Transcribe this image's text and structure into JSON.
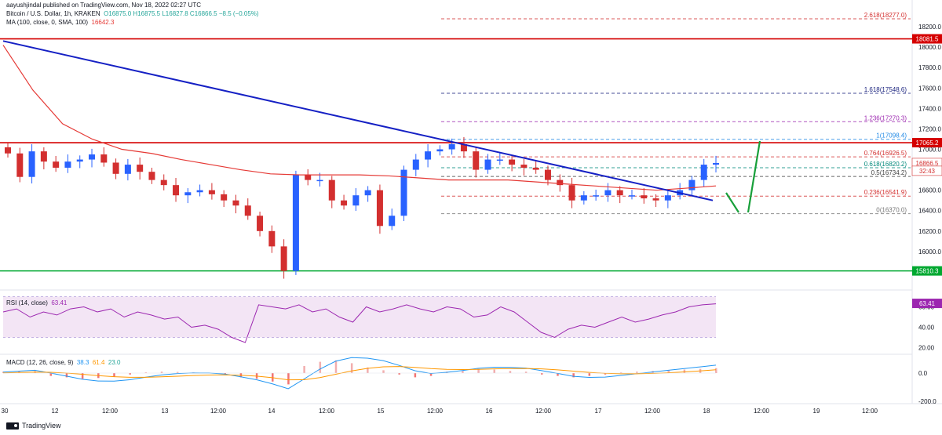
{
  "header": {
    "publisher": "aayushjindal published on TradingView.com, Nov 18, 2022 02:27 UTC",
    "symbol": "Bitcoin / U.S. Dollar, 1h, KRAKEN",
    "ohlc": "O16875.0  H16875.5  L16827.8  C16866.5  −8.5 (−0.05%)",
    "ma_label": "MA (100, close, 0, SMA, 100)",
    "ma_value": "16642.3",
    "rsi_label": "RSI (14, close)",
    "rsi_value": "63.41",
    "macd_label": "MACD (12, 26, close, 9)",
    "macd_v1": "38.3",
    "macd_v2": "61.4",
    "macd_v3": "23.0"
  },
  "brand": "TradingView",
  "colors": {
    "up": "#26a69a",
    "down": "#ef5350",
    "body_up": "#2962ff",
    "body_down": "#d32f2f",
    "ma": "#e53935",
    "trend": "#1520c4",
    "resistance": "#d50000",
    "support": "#00a830",
    "rsi": "#9c27b0",
    "rsi_bg": "#f3e5f5",
    "macd": "#2196f3",
    "signal": "#ff9800",
    "arrow": "#18a03a",
    "fib": "#9e9e9e"
  },
  "chart_data": {
    "type": "line",
    "y_ticks": [
      "18200.0",
      "18000.0",
      "17800.0",
      "17600.0",
      "17400.0",
      "17200.0",
      "17000.0",
      "16800.0",
      "16600.0",
      "16400.0",
      "16200.0",
      "16000.0"
    ],
    "x_ticks": [
      "30",
      "12",
      "12:00",
      "13",
      "12:00",
      "14",
      "12:00",
      "15",
      "12:00",
      "16",
      "12:00",
      "17",
      "12:00",
      "18",
      "12:00",
      "19",
      "12:00"
    ],
    "price_close_path": [
      16960,
      16730,
      16980,
      16880,
      16820,
      16880,
      16900,
      16950,
      16870,
      16760,
      16850,
      16780,
      16700,
      16650,
      16550,
      16580,
      16600,
      16560,
      16500,
      16450,
      16350,
      16200,
      16050,
      15810,
      16750,
      16700,
      16700,
      16500,
      16450,
      16550,
      16600,
      16250,
      16350,
      16800,
      16900,
      16980,
      17000,
      17050,
      16980,
      16800,
      16900,
      16900,
      16850,
      16820,
      16800,
      16700,
      16650,
      16500,
      16550,
      16550,
      16600,
      16550,
      16550,
      16520,
      16500,
      16550,
      16600,
      16700,
      16850,
      16866
    ],
    "ma100_path": [
      18020,
      17580,
      17250,
      17100,
      17000,
      16960,
      16900,
      16850,
      16800,
      16760,
      16750,
      16750,
      16750,
      16740,
      16720,
      16700,
      16700,
      16700,
      16680,
      16660,
      16640,
      16620,
      16600,
      16620,
      16642
    ],
    "levels": [
      {
        "label": "18081.5",
        "value": 18081.5,
        "color": "#d50000"
      },
      {
        "label": "17065.2",
        "value": 17065.2,
        "color": "#d50000"
      },
      {
        "label": "15810.3",
        "value": 15810.3,
        "color": "#00a830"
      }
    ],
    "fib_levels": [
      {
        "label": "2.618(18277.0)",
        "value": 18277.0,
        "color": "#d32f2f"
      },
      {
        "label": "1.618(17548.6)",
        "value": 17548.6,
        "color": "#1a237e"
      },
      {
        "label": "1.236(17270.3)",
        "value": 17270.3,
        "color": "#9c27b0"
      },
      {
        "label": "1(17098.4)",
        "value": 17098.4,
        "color": "#1e88e5"
      },
      {
        "label": "0.764(16926.5)",
        "value": 16926.5,
        "color": "#d32f2f"
      },
      {
        "label": "0.618(16820.2)",
        "value": 16820.2,
        "color": "#00897b"
      },
      {
        "label": "0.5(16734.2)",
        "value": 16734.2,
        "color": "#424242"
      },
      {
        "label": "0.236(16541.9)",
        "value": 16541.9,
        "color": "#d32f2f"
      },
      {
        "label": "0(16370.0)",
        "value": 16370.0,
        "color": "#757575"
      }
    ],
    "price_tags": [
      {
        "label": "16866.5",
        "value": 16866.5,
        "color": "#d32f2f"
      },
      {
        "label": "32:43",
        "value": 16790,
        "color": "#d32f2f"
      }
    ],
    "trendline": {
      "start": 18060,
      "end": 16500
    },
    "rsi": {
      "ticks": [
        "60.00",
        "40.00",
        "20.00"
      ],
      "upper": 70,
      "lower": 30,
      "values": [
        55,
        58,
        50,
        55,
        52,
        58,
        60,
        55,
        58,
        50,
        55,
        52,
        48,
        50,
        40,
        42,
        38,
        30,
        25,
        62,
        60,
        58,
        62,
        55,
        58,
        50,
        45,
        60,
        55,
        58,
        62,
        58,
        55,
        60,
        58,
        50,
        52,
        60,
        55,
        45,
        35,
        30,
        38,
        42,
        40,
        45,
        50,
        45,
        48,
        52,
        55,
        60,
        62,
        63
      ]
    },
    "macd": {
      "ticks": [
        "0.0",
        "-200.0"
      ],
      "histogram": [
        10,
        12,
        15,
        -20,
        -30,
        -40,
        -35,
        -25,
        -10,
        5,
        10,
        8,
        5,
        0,
        -10,
        -30,
        -40,
        -60,
        -80,
        50,
        80,
        90,
        70,
        40,
        20,
        -10,
        -30,
        -20,
        10,
        20,
        30,
        25,
        15,
        10,
        -10,
        -20,
        -30,
        -20,
        -10,
        5,
        10,
        15,
        20,
        25,
        30,
        35
      ]
    }
  }
}
